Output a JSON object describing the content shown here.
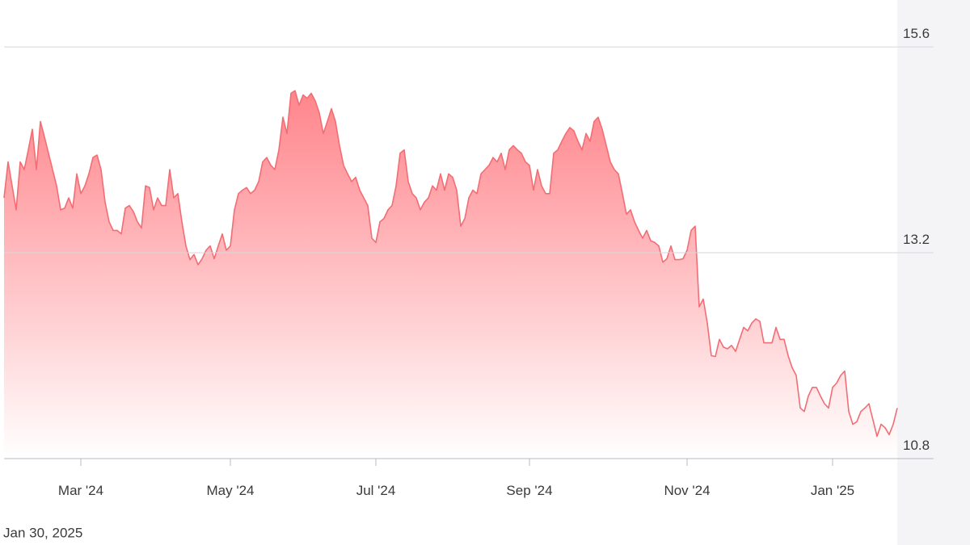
{
  "chart_data": {
    "type": "area",
    "date_label": "Jan 30, 2025",
    "color": "#f26d74",
    "ylim": [
      10.8,
      16.1
    ],
    "yticks": [
      10.8,
      13.2,
      15.6
    ],
    "grid": true,
    "categories": [
      null,
      null,
      null,
      null,
      null,
      null,
      null,
      null,
      null,
      null,
      null,
      null,
      null,
      null,
      null,
      null,
      null,
      null,
      null,
      "Mar '24",
      null,
      null,
      null,
      null,
      null,
      null,
      null,
      null,
      null,
      null,
      null,
      null,
      null,
      null,
      null,
      null,
      null,
      null,
      null,
      null,
      null,
      null,
      null,
      null,
      null,
      null,
      null,
      null,
      null,
      null,
      null,
      null,
      null,
      null,
      null,
      null,
      "May '24",
      null,
      null,
      null,
      null,
      null,
      null,
      null,
      null,
      null,
      null,
      null,
      null,
      null,
      null,
      null,
      null,
      null,
      null,
      null,
      null,
      null,
      null,
      null,
      null,
      null,
      null,
      null,
      null,
      null,
      null,
      null,
      null,
      null,
      null,
      null,
      "Jul '24",
      null,
      null,
      null,
      null,
      null,
      null,
      null,
      null,
      null,
      null,
      null,
      null,
      null,
      null,
      null,
      null,
      null,
      null,
      null,
      null,
      null,
      null,
      null,
      null,
      null,
      null,
      null,
      null,
      null,
      null,
      null,
      null,
      null,
      null,
      null,
      null,
      null,
      "Sep '24",
      null,
      null,
      null,
      null,
      null,
      null,
      null,
      null,
      null,
      null,
      null,
      null,
      null,
      null,
      null,
      null,
      null,
      null,
      null,
      null,
      null,
      null,
      null,
      null,
      null,
      null,
      null,
      null,
      null,
      null,
      null,
      null,
      null,
      null,
      null,
      null,
      null,
      null,
      "Nov '24",
      null,
      null,
      null,
      null,
      null,
      null,
      null,
      null,
      null,
      null,
      null,
      null,
      null,
      null,
      null,
      null,
      null,
      null,
      null,
      null,
      null,
      null,
      null,
      null,
      null,
      null,
      null,
      null,
      null,
      null,
      null,
      null,
      null,
      null,
      null,
      "Jan '25",
      null,
      null,
      null,
      null,
      null,
      null,
      null,
      null,
      null,
      null,
      null,
      null,
      null,
      null,
      null,
      null
    ],
    "values": [
      13.84,
      14.26,
      13.98,
      13.7,
      14.26,
      14.17,
      14.4,
      14.64,
      14.17,
      14.73,
      14.55,
      14.36,
      14.17,
      13.98,
      13.7,
      13.72,
      13.84,
      13.72,
      14.12,
      13.89,
      13.98,
      14.12,
      14.31,
      14.34,
      14.17,
      13.79,
      13.56,
      13.46,
      13.46,
      13.42,
      13.72,
      13.75,
      13.68,
      13.56,
      13.49,
      13.98,
      13.96,
      13.7,
      13.84,
      13.75,
      13.75,
      14.17,
      13.84,
      13.89,
      13.56,
      13.28,
      13.12,
      13.18,
      13.06,
      13.13,
      13.23,
      13.28,
      13.13,
      13.28,
      13.42,
      13.23,
      13.28,
      13.7,
      13.89,
      13.93,
      13.96,
      13.89,
      13.93,
      14.03,
      14.26,
      14.31,
      14.22,
      14.17,
      14.4,
      14.78,
      14.59,
      15.06,
      15.09,
      14.92,
      15.04,
      15.0,
      15.06,
      14.97,
      14.83,
      14.59,
      14.73,
      14.88,
      14.73,
      14.45,
      14.22,
      14.12,
      14.03,
      14.08,
      13.93,
      13.84,
      13.75,
      13.37,
      13.32,
      13.56,
      13.6,
      13.7,
      13.75,
      13.98,
      14.36,
      14.4,
      14.03,
      13.89,
      13.84,
      13.7,
      13.79,
      13.84,
      13.98,
      13.93,
      14.12,
      13.93,
      14.12,
      14.08,
      13.93,
      13.51,
      13.6,
      13.84,
      13.93,
      13.89,
      14.12,
      14.17,
      14.22,
      14.31,
      14.26,
      14.36,
      14.17,
      14.4,
      14.45,
      14.4,
      14.36,
      14.26,
      14.22,
      13.93,
      14.17,
      13.98,
      13.89,
      13.89,
      14.36,
      14.4,
      14.5,
      14.59,
      14.66,
      14.62,
      14.5,
      14.4,
      14.59,
      14.5,
      14.73,
      14.78,
      14.64,
      14.45,
      14.26,
      14.17,
      14.12,
      13.89,
      13.65,
      13.7,
      13.56,
      13.46,
      13.37,
      13.46,
      13.34,
      13.32,
      13.28,
      13.09,
      13.13,
      13.28,
      13.12,
      13.12,
      13.13,
      13.23,
      13.46,
      13.51,
      12.57,
      12.66,
      12.38,
      12.0,
      11.99,
      12.19,
      12.1,
      12.08,
      12.12,
      12.05,
      12.19,
      12.33,
      12.29,
      12.38,
      12.43,
      12.4,
      12.15,
      12.15,
      12.15,
      12.33,
      12.19,
      12.19,
      12.0,
      11.86,
      11.77,
      11.39,
      11.35,
      11.53,
      11.63,
      11.63,
      11.53,
      11.44,
      11.39,
      11.63,
      11.68,
      11.77,
      11.82,
      11.35,
      11.2,
      11.23,
      11.35,
      11.39,
      11.44,
      11.25,
      11.06,
      11.2,
      11.16,
      11.08,
      11.2,
      11.39
    ]
  }
}
